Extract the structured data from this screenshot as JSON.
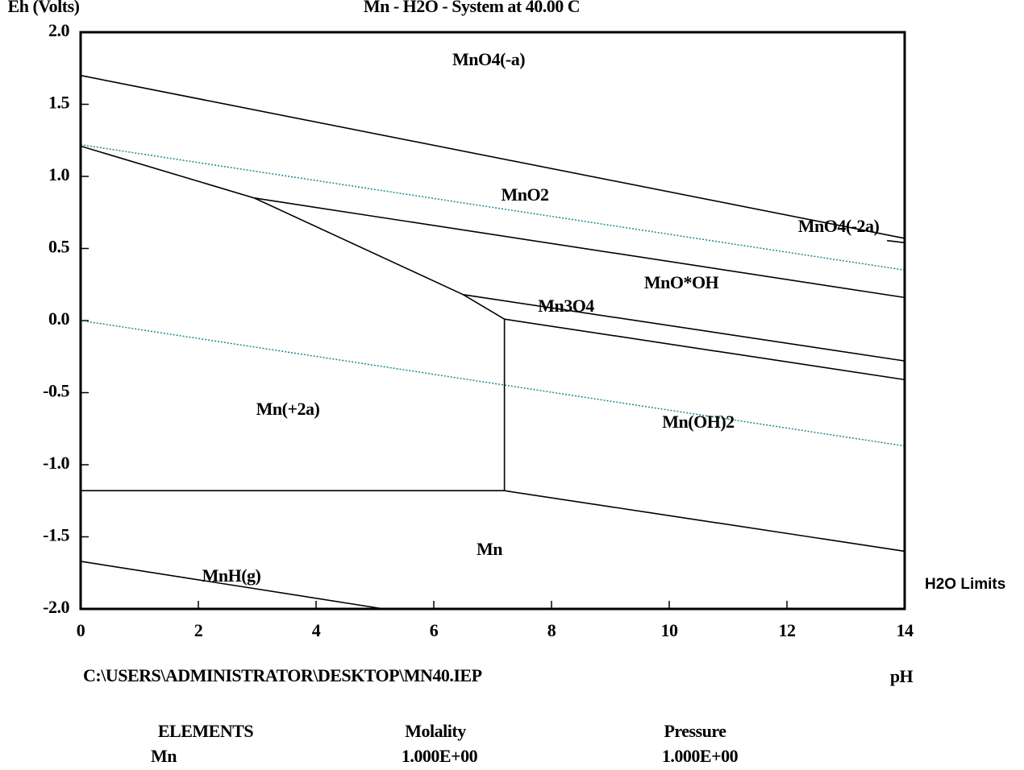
{
  "chart_data": {
    "type": "line",
    "title": "Mn - H2O - System at 40.00 C",
    "ylabel": "Eh (Volts)",
    "xlabel": "pH",
    "xlim": [
      0,
      14
    ],
    "xticks": [
      0,
      2,
      4,
      6,
      8,
      10,
      12,
      14
    ],
    "ylim": [
      -2,
      2
    ],
    "yticks": [
      {
        "value": 2,
        "label": "2.0"
      },
      1.5,
      {
        "value": 1,
        "label": "1.0"
      },
      0.5,
      {
        "value": 0,
        "label": "0.0"
      },
      -0.5,
      {
        "value": -1,
        "label": "-1.0"
      },
      -1.5,
      {
        "value": -2,
        "label": "-2.0"
      }
    ],
    "annotations": [
      "MnO4(-a)",
      "MnO2",
      "MnO4(-2a)",
      "MnO*OH",
      "Mn3O4",
      "Mn(+2a)",
      "Mn(OH)2",
      "Mn",
      "MnH(g)"
    ],
    "series": [
      {
        "name": "H2O Limits",
        "color": "#1a8a8a",
        "style": "dotted",
        "x": [
          0,
          14
        ],
        "values": [
          1.22,
          0.35
        ]
      },
      {
        "color": "#1a8a8a",
        "style": "dotted",
        "x": [
          0,
          14
        ],
        "values": [
          0,
          -0.87
        ]
      },
      {
        "color": "#000000",
        "style": "solid",
        "x": [
          0,
          14
        ],
        "values": [
          1.7,
          0.57
        ]
      },
      {
        "color": "#000000",
        "style": "solid",
        "x": [
          13.7,
          14
        ],
        "values": [
          0.555,
          0.54
        ]
      },
      {
        "color": "#000000",
        "style": "solid",
        "x": [
          0,
          2.95,
          6.5,
          7.2
        ],
        "values": [
          1.21,
          0.85,
          0.18,
          0.01
        ]
      },
      {
        "color": "#000000",
        "style": "solid",
        "x": [
          2.95,
          14
        ],
        "values": [
          0.85,
          0.16
        ]
      },
      {
        "color": "#000000",
        "style": "solid",
        "x": [
          6.5,
          14
        ],
        "values": [
          0.18,
          -0.28
        ]
      },
      {
        "color": "#000000",
        "style": "solid",
        "x": [
          7.2,
          14
        ],
        "values": [
          0.01,
          -0.41
        ]
      },
      {
        "color": "#000000",
        "style": "solid",
        "x": [
          7.2,
          7.2
        ],
        "values": [
          0.01,
          -1.18
        ]
      },
      {
        "color": "#000000",
        "style": "solid",
        "x": [
          0,
          7.2
        ],
        "values": [
          -1.18,
          -1.18
        ]
      },
      {
        "color": "#000000",
        "style": "solid",
        "x": [
          7.2,
          14
        ],
        "values": [
          -1.18,
          -1.6
        ]
      },
      {
        "color": "#000000",
        "style": "solid",
        "x": [
          0,
          5.15
        ],
        "values": [
          -1.67,
          -2.0
        ]
      }
    ]
  },
  "file": "C:\\USERS\\ADMINISTRATOR\\DESKTOP\\MN40.IEP",
  "table": {
    "headers": [
      "ELEMENTS",
      "Molality",
      "Pressure"
    ],
    "rows": [
      [
        "Mn",
        "1.000E+00",
        "1.000E+00"
      ]
    ]
  }
}
